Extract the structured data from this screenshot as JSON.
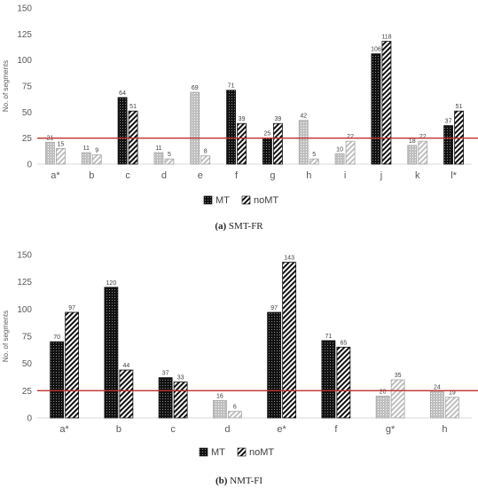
{
  "chart_data": [
    {
      "type": "bar",
      "caption_letter": "(a)",
      "caption_text": "SMT-FR",
      "ylabel": "No. of segments",
      "ylim": [
        0,
        150
      ],
      "yticks": [
        "0",
        "25",
        "50",
        "75",
        "100",
        "125",
        "150"
      ],
      "reference_line": 25,
      "categories": [
        "a*",
        "b",
        "c",
        "d",
        "e",
        "f",
        "g",
        "h",
        "i",
        "j",
        "k",
        "l*"
      ],
      "series": [
        {
          "name": "MT",
          "values": [
            21,
            11,
            64,
            11,
            69,
            71,
            25,
            42,
            10,
            106,
            18,
            37
          ]
        },
        {
          "name": "noMT",
          "values": [
            15,
            9,
            51,
            5,
            8,
            39,
            39,
            5,
            22,
            118,
            22,
            51
          ]
        }
      ],
      "highlighted": [
        false,
        false,
        true,
        false,
        false,
        true,
        true,
        false,
        false,
        true,
        false,
        true
      ],
      "legend": [
        "MT",
        "noMT"
      ]
    },
    {
      "type": "bar",
      "caption_letter": "(b)",
      "caption_text": "NMT-FI",
      "ylabel": "No. of segments",
      "ylim": [
        0,
        150
      ],
      "yticks": [
        "0",
        "25",
        "50",
        "75",
        "100",
        "125",
        "150"
      ],
      "reference_line": 25,
      "categories": [
        "a*",
        "b",
        "c",
        "d",
        "e*",
        "f",
        "g*",
        "h"
      ],
      "series": [
        {
          "name": "MT",
          "values": [
            70,
            120,
            37,
            16,
            97,
            71,
            20,
            24
          ]
        },
        {
          "name": "noMT",
          "values": [
            97,
            44,
            33,
            6,
            143,
            65,
            35,
            19
          ]
        }
      ],
      "highlighted": [
        true,
        true,
        true,
        false,
        true,
        true,
        false,
        false
      ],
      "legend": [
        "MT",
        "noMT"
      ]
    }
  ],
  "colors": {
    "highlight": "#1a1a1a",
    "muted": "#bfbfbf",
    "reference_line": "#c0302b",
    "axis": "#d9d9d9"
  }
}
